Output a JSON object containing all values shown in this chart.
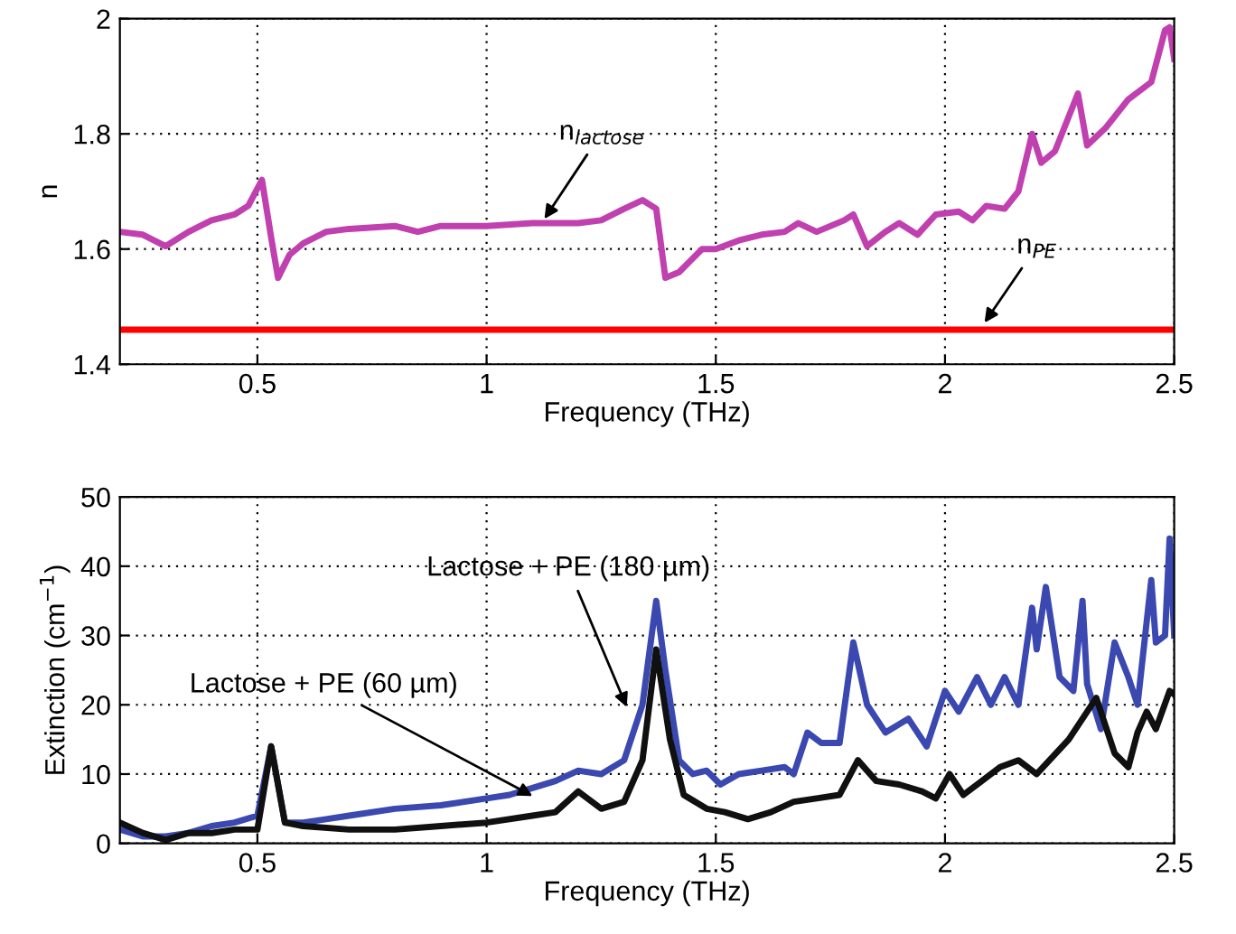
{
  "chart_data": [
    {
      "type": "line",
      "xlabel": "Frequency (THz)",
      "ylabel": "n",
      "xlim": [
        0.2,
        2.5
      ],
      "xticks": [
        0.5,
        1,
        1.5,
        2,
        2.5
      ],
      "ylim": [
        1.4,
        2
      ],
      "yticks": [
        1.4,
        1.6,
        1.8,
        2
      ],
      "grid": true,
      "series": [
        {
          "color": "#c040b0",
          "x": [
            0.2,
            0.25,
            0.3,
            0.35,
            0.4,
            0.45,
            0.48,
            0.51,
            0.53,
            0.545,
            0.57,
            0.6,
            0.65,
            0.7,
            0.8,
            0.85,
            0.9,
            1.0,
            1.1,
            1.2,
            1.25,
            1.3,
            1.34,
            1.37,
            1.39,
            1.42,
            1.47,
            1.5,
            1.55,
            1.6,
            1.65,
            1.68,
            1.72,
            1.78,
            1.8,
            1.83,
            1.87,
            1.9,
            1.94,
            1.98,
            2.03,
            2.06,
            2.09,
            2.13,
            2.16,
            2.19,
            2.21,
            2.24,
            2.29,
            2.31,
            2.35,
            2.4,
            2.45,
            2.48,
            2.49,
            2.5
          ],
          "values": [
            1.63,
            1.625,
            1.605,
            1.63,
            1.65,
            1.66,
            1.675,
            1.72,
            1.62,
            1.55,
            1.59,
            1.61,
            1.63,
            1.635,
            1.64,
            1.63,
            1.64,
            1.64,
            1.645,
            1.645,
            1.65,
            1.67,
            1.685,
            1.67,
            1.55,
            1.56,
            1.6,
            1.6,
            1.615,
            1.625,
            1.63,
            1.645,
            1.63,
            1.65,
            1.66,
            1.605,
            1.63,
            1.645,
            1.625,
            1.66,
            1.665,
            1.65,
            1.675,
            1.67,
            1.7,
            1.8,
            1.75,
            1.77,
            1.87,
            1.78,
            1.81,
            1.86,
            1.89,
            1.98,
            1.985,
            1.93
          ]
        },
        {
          "color": "#ff0000",
          "x": [
            0.2,
            2.5
          ],
          "values": [
            1.46,
            1.46
          ]
        }
      ],
      "annotations": [
        {
          "text": "n$_{lactose}$",
          "x": 1.12,
          "y": 1.645
        },
        {
          "text": "n$_{PE}$",
          "x": 2.08,
          "y": 1.465
        }
      ]
    },
    {
      "type": "line",
      "xlabel": "Frequency (THz)",
      "ylabel": "Extinction (cm$^{−1}$)",
      "xlim": [
        0.2,
        2.5
      ],
      "xticks": [
        0.5,
        1,
        1.5,
        2,
        2.5
      ],
      "ylim": [
        0,
        50
      ],
      "yticks": [
        0,
        10,
        20,
        30,
        40,
        50
      ],
      "grid": true,
      "series": [
        {
          "color": "#3a48b0",
          "x": [
            0.2,
            0.25,
            0.3,
            0.35,
            0.4,
            0.45,
            0.5,
            0.53,
            0.56,
            0.6,
            0.65,
            0.7,
            0.8,
            0.9,
            1.0,
            1.05,
            1.1,
            1.15,
            1.2,
            1.25,
            1.3,
            1.34,
            1.37,
            1.39,
            1.42,
            1.45,
            1.48,
            1.51,
            1.55,
            1.6,
            1.65,
            1.67,
            1.7,
            1.73,
            1.77,
            1.8,
            1.83,
            1.87,
            1.92,
            1.96,
            2.0,
            2.03,
            2.07,
            2.1,
            2.13,
            2.16,
            2.19,
            2.2,
            2.22,
            2.25,
            2.28,
            2.3,
            2.31,
            2.34,
            2.37,
            2.4,
            2.42,
            2.45,
            2.46,
            2.48,
            2.49,
            2.5
          ],
          "values": [
            2,
            1,
            1,
            1.5,
            2.5,
            3,
            4,
            14,
            3,
            3,
            3.5,
            4,
            5,
            5.5,
            6.5,
            7,
            8,
            9,
            10.5,
            10,
            12,
            20,
            35,
            25,
            12,
            10,
            10.5,
            8.5,
            10,
            10.5,
            11,
            10,
            16,
            14.5,
            14.5,
            29,
            20,
            16,
            18,
            14,
            22,
            19,
            24,
            20,
            24,
            20,
            34,
            28,
            37,
            24,
            22,
            35,
            23,
            16.5,
            29,
            24,
            20,
            38,
            29,
            30,
            44,
            30
          ]
        },
        {
          "color": "#101010",
          "x": [
            0.2,
            0.25,
            0.3,
            0.35,
            0.4,
            0.45,
            0.5,
            0.53,
            0.56,
            0.6,
            0.7,
            0.8,
            0.9,
            1.0,
            1.1,
            1.15,
            1.2,
            1.25,
            1.3,
            1.34,
            1.37,
            1.4,
            1.43,
            1.48,
            1.52,
            1.57,
            1.62,
            1.67,
            1.72,
            1.77,
            1.81,
            1.85,
            1.9,
            1.95,
            1.98,
            2.01,
            2.04,
            2.08,
            2.12,
            2.16,
            2.2,
            2.27,
            2.33,
            2.37,
            2.4,
            2.42,
            2.44,
            2.46,
            2.49,
            2.5
          ],
          "values": [
            3,
            1.5,
            0.5,
            1.5,
            1.5,
            2,
            2,
            14,
            3,
            2.5,
            2,
            2,
            2.5,
            3,
            4,
            4.5,
            7.5,
            5,
            6,
            12,
            28,
            15,
            7,
            5,
            4.5,
            3.5,
            4.5,
            6,
            6.5,
            7,
            12,
            9,
            8.5,
            7.5,
            6.5,
            10,
            7,
            9,
            11,
            12,
            10,
            15,
            21,
            13,
            11,
            16,
            19,
            16.5,
            22,
            21.5
          ]
        }
      ],
      "annotations": [
        {
          "text": "Lactose + PE (180 µm)",
          "x": 1.31,
          "y": 19
        },
        {
          "text": "Lactose + PE (60 µm)",
          "x": 1.11,
          "y": 6.5
        }
      ]
    }
  ]
}
